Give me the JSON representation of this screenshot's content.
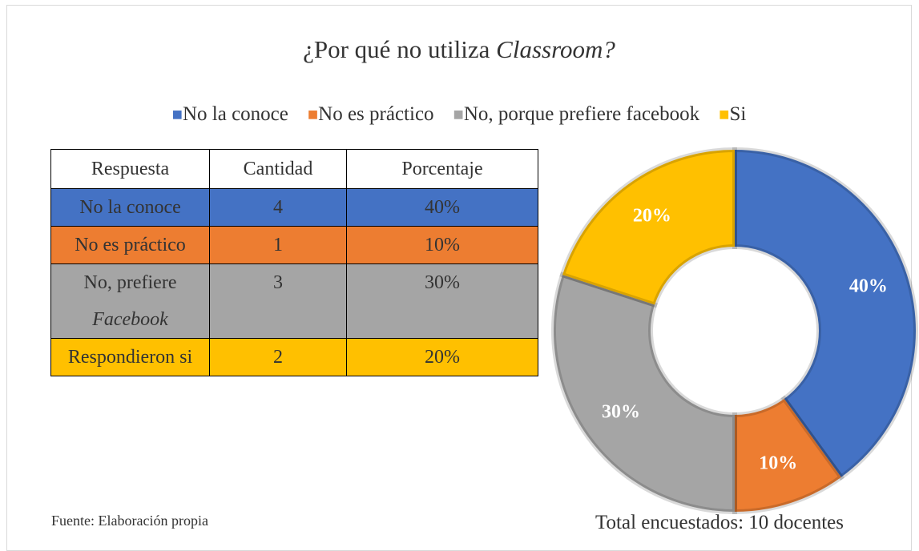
{
  "chart_data": {
    "type": "doughnut",
    "title": "¿Por qué no utiliza Classroom?",
    "series": [
      {
        "name": "No la conoce",
        "color": "#4472c4",
        "values": [
          40
        ],
        "value_labels": [
          "40%"
        ]
      },
      {
        "name": "No es práctico",
        "color": "#ed7d31",
        "values": [
          10
        ],
        "value_labels": [
          "10%"
        ]
      },
      {
        "name": "No, porque prefiere facebook",
        "color": "#a5a5a5",
        "values": [
          30
        ],
        "value_labels": [
          "30%"
        ]
      },
      {
        "name": "Si",
        "color": "#ffc000",
        "values": [
          20
        ],
        "value_labels": [
          "20%"
        ]
      }
    ],
    "legend": "top",
    "note": "Total encuestados: 10 docentes"
  },
  "table": {
    "header": [
      "Respuesta",
      "Cantidad",
      "Porcentaje"
    ],
    "rows": [
      [
        "No la conoce",
        4,
        "40%"
      ],
      [
        "No es práctico",
        1,
        "10%"
      ],
      [
        "No, prefiere Facebook",
        3,
        "30%"
      ],
      [
        "Respondieron si",
        2,
        "20%"
      ]
    ]
  },
  "source": "Fuente: Elaboración propia"
}
